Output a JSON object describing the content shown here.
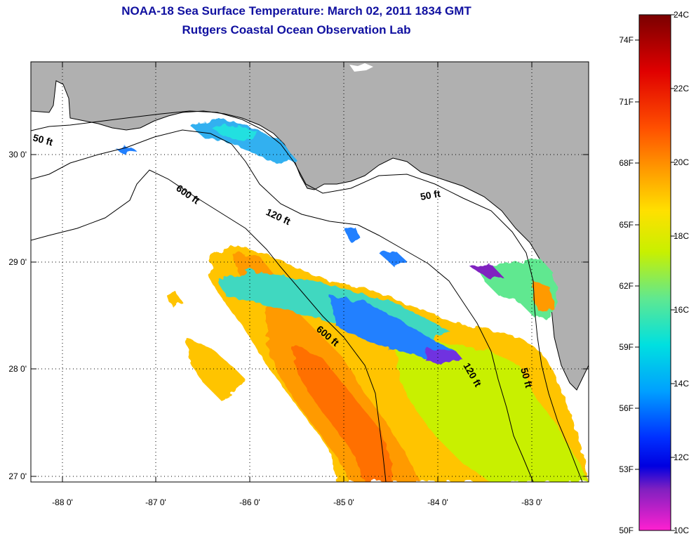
{
  "title": "NOAA-18 Sea Surface Temperature:  March 02, 2011 1834 GMT",
  "subtitle": "Rutgers Coastal Ocean Observation Lab",
  "map": {
    "lon_ticks": [
      "-88 0'",
      "-87 0'",
      "-86 0'",
      "-85 0'",
      "-84 0'",
      "-83 0'"
    ],
    "lat_ticks": [
      "30 0'",
      "29 0'",
      "28 0'",
      "27 0'"
    ],
    "contour_labels": [
      "50 ft",
      "600 ft",
      "120 ft",
      "50 ft",
      "600 ft",
      "120 ft",
      "50 ft"
    ],
    "land_color": "#b0b0b0",
    "no_data_color": "#ffffff"
  },
  "colorbar": {
    "fahrenheit": [
      "74F",
      "71F",
      "68F",
      "65F",
      "62F",
      "59F",
      "56F",
      "53F",
      "50F"
    ],
    "celsius": [
      "24C",
      "22C",
      "20C",
      "18C",
      "16C",
      "14C",
      "12C",
      "10C"
    ],
    "colors_top_to_bottom": [
      "#7a0000",
      "#e00000",
      "#ff5000",
      "#ff9a00",
      "#ffe000",
      "#c8f000",
      "#60e890",
      "#00e0e0",
      "#00a0ff",
      "#0030ff",
      "#0000e0",
      "#8020c0",
      "#ff20d0"
    ]
  }
}
